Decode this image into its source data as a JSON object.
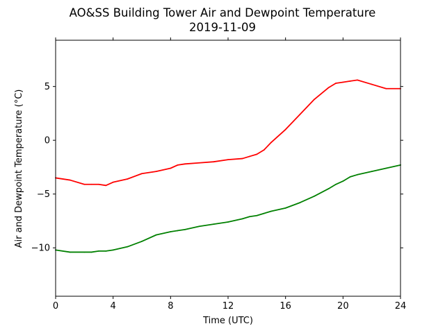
{
  "chart_data": {
    "type": "line",
    "title": "AO&SS Building Tower Air and Dewpoint Temperature",
    "subtitle": "2019-11-09",
    "xlabel": "Time (UTC)",
    "ylabel": "Air and Dewpoint Temperature (°C)",
    "xlim": [
      0,
      24
    ],
    "ylim": [
      -14.5,
      9.3
    ],
    "x_ticks": [
      0,
      4,
      8,
      12,
      16,
      20,
      24
    ],
    "x_tick_labels": [
      "0",
      "4",
      "8",
      "12",
      "16",
      "20",
      "24"
    ],
    "y_ticks": [
      -10,
      -5,
      0,
      5
    ],
    "y_tick_labels": [
      "−10",
      "−5",
      "0",
      "5"
    ],
    "grid": false,
    "legend": "none",
    "x": [
      0,
      1,
      2,
      2.5,
      3,
      3.5,
      4,
      5,
      6,
      7,
      8,
      8.5,
      9,
      10,
      11,
      12,
      13,
      13.5,
      14,
      14.5,
      15,
      16,
      17,
      18,
      19,
      19.5,
      20,
      20.5,
      21,
      22,
      23,
      24
    ],
    "series": [
      {
        "color": "#ff0000",
        "values": [
          -3.5,
          -3.7,
          -4.1,
          -4.1,
          -4.1,
          -4.2,
          -3.9,
          -3.6,
          -3.1,
          -2.9,
          -2.6,
          -2.3,
          -2.2,
          -2.1,
          -2.0,
          -1.8,
          -1.7,
          -1.5,
          -1.3,
          -0.9,
          -0.2,
          1.0,
          2.4,
          3.8,
          4.9,
          5.3,
          5.4,
          5.5,
          5.6,
          5.2,
          4.8,
          4.8
        ]
      },
      {
        "color": "#008000",
        "values": [
          -10.2,
          -10.4,
          -10.4,
          -10.4,
          -10.3,
          -10.3,
          -10.2,
          -9.9,
          -9.4,
          -8.8,
          -8.5,
          -8.4,
          -8.3,
          -8.0,
          -7.8,
          -7.6,
          -7.3,
          -7.1,
          -7.0,
          -6.8,
          -6.6,
          -6.3,
          -5.8,
          -5.2,
          -4.5,
          -4.1,
          -3.8,
          -3.4,
          -3.2,
          -2.9,
          -2.6,
          -2.3
        ]
      }
    ]
  }
}
